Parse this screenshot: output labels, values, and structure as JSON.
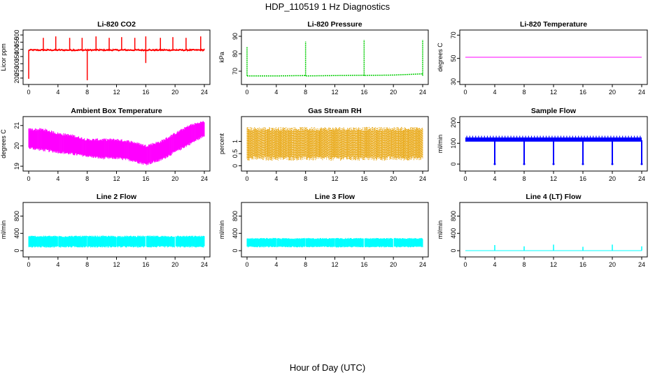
{
  "figure_title": "HDP_110519  1 Hz Diagnostics",
  "x_axis_label": "Hour of Day (UTC)",
  "chart_data": [
    {
      "type": "line",
      "title": "Li-820 CO2",
      "ylabel": "Licor ppm",
      "color": "#ff0000",
      "xlim": [
        0,
        24
      ],
      "ylim": [
        175,
        515
      ],
      "xticks": [
        0,
        4,
        8,
        12,
        16,
        20,
        24
      ],
      "yticks": [
        200,
        250,
        300,
        350,
        400,
        450,
        500
      ],
      "series": [
        {
          "name": "CO2",
          "baseline": 395,
          "noise": 4,
          "spikes": [
            [
              2,
              480
            ],
            [
              3.7,
              490
            ],
            [
              5.6,
              480
            ],
            [
              7.3,
              480
            ],
            [
              9.2,
              490
            ],
            [
              11,
              480
            ],
            [
              12.7,
              485
            ],
            [
              14.5,
              480
            ],
            [
              16,
              490
            ],
            [
              18,
              480
            ],
            [
              19.7,
              485
            ],
            [
              21.5,
              480
            ],
            [
              23.5,
              490
            ]
          ],
          "dips": [
            [
              0,
              195
            ],
            [
              8,
              185
            ],
            [
              16,
              305
            ]
          ],
          "x": [
            0,
            8,
            16,
            24
          ],
          "y": [
            395,
            395,
            395,
            395
          ]
        }
      ]
    },
    {
      "type": "line",
      "title": "Li-820 Pressure",
      "ylabel": "kPa",
      "color": "#00cc00",
      "xlim": [
        0,
        24
      ],
      "ylim": [
        64,
        92
      ],
      "xticks": [
        0,
        4,
        8,
        12,
        16,
        20,
        24
      ],
      "yticks": [
        70,
        80,
        90
      ],
      "series": [
        {
          "name": "Pressure",
          "x": [
            0,
            4,
            8,
            8.1,
            12,
            16,
            16.1,
            20,
            24
          ],
          "y": [
            67.3,
            67.3,
            67.5,
            67.3,
            67.5,
            67.7,
            67.6,
            67.8,
            68.5
          ],
          "spikes": [
            [
              0,
              84
            ],
            [
              8,
              87
            ],
            [
              16,
              88
            ],
            [
              24,
              88
            ]
          ]
        }
      ]
    },
    {
      "type": "line",
      "title": "Li-820 Temperature",
      "ylabel": "degrees C",
      "color": "#ff00ff",
      "xlim": [
        0,
        24
      ],
      "ylim": [
        30,
        72
      ],
      "xticks": [
        0,
        4,
        8,
        12,
        16,
        20,
        24
      ],
      "yticks": [
        30,
        50,
        70
      ],
      "series": [
        {
          "name": "Temperature",
          "x": [
            0,
            24
          ],
          "y": [
            51,
            51
          ]
        }
      ]
    },
    {
      "type": "area",
      "title": "Ambient Box Temperature",
      "ylabel": "degrees C",
      "color": "#ff00ff",
      "xlim": [
        0,
        24
      ],
      "ylim": [
        18.9,
        21.3
      ],
      "xticks": [
        0,
        4,
        8,
        12,
        16,
        20,
        24
      ],
      "yticks": [
        19.0,
        20.0,
        21.0
      ],
      "series": [
        {
          "name": "Box Temperature",
          "x": [
            0,
            2,
            4,
            6,
            8,
            10,
            12,
            14,
            16,
            18,
            20,
            22,
            24
          ],
          "upper": [
            20.8,
            20.8,
            20.6,
            20.5,
            20.3,
            20.3,
            20.3,
            20.2,
            20.0,
            20.2,
            20.6,
            21.0,
            21.2
          ],
          "lower": [
            19.9,
            19.8,
            19.7,
            19.6,
            19.5,
            19.4,
            19.4,
            19.3,
            19.1,
            19.3,
            19.7,
            20.1,
            20.5
          ]
        }
      ]
    },
    {
      "type": "area",
      "title": "Gas Stream RH",
      "ylabel": "percent",
      "color": "#e6a000",
      "xlim": [
        0,
        24
      ],
      "ylim": [
        -0.1,
        1.9
      ],
      "xticks": [
        0,
        4,
        8,
        12,
        16,
        20,
        24
      ],
      "yticks": [
        0.0,
        0.5,
        1.0
      ],
      "series": [
        {
          "name": "RH",
          "x": [
            0,
            24
          ],
          "upper": [
            1.5,
            1.5
          ],
          "lower": [
            0.3,
            0.3
          ]
        }
      ]
    },
    {
      "type": "line",
      "title": "Sample Flow",
      "ylabel": "ml/min",
      "color": "#0000ff",
      "xlim": [
        0,
        24
      ],
      "ylim": [
        -20,
        215
      ],
      "xticks": [
        0,
        4,
        8,
        12,
        16,
        20,
        24
      ],
      "yticks": [
        0,
        100,
        200
      ],
      "series": [
        {
          "name": "Sample Flow",
          "baseline": 115,
          "band": [
            108,
            128
          ],
          "dips": [
            [
              4,
              0
            ],
            [
              8,
              0
            ],
            [
              12,
              0
            ],
            [
              16,
              0
            ],
            [
              20,
              0
            ],
            [
              24,
              0
            ]
          ]
        }
      ]
    },
    {
      "type": "area",
      "title": "Line 2 Flow",
      "ylabel": "ml/min",
      "color": "#00ffff",
      "xlim": [
        0,
        24
      ],
      "ylim": [
        -80,
        1050
      ],
      "xticks": [
        0,
        4,
        8,
        12,
        16,
        20,
        24
      ],
      "yticks": [
        0,
        400,
        800
      ],
      "series": [
        {
          "name": "Line 2 Flow",
          "x": [
            0,
            24
          ],
          "upper": [
            330,
            330
          ],
          "lower": [
            90,
            90
          ],
          "gaps": [
            4,
            8,
            12,
            16,
            20
          ]
        }
      ]
    },
    {
      "type": "area",
      "title": "Line 3 Flow",
      "ylabel": "ml/min",
      "color": "#00ffff",
      "xlim": [
        0,
        24
      ],
      "ylim": [
        -80,
        1050
      ],
      "xticks": [
        0,
        4,
        8,
        12,
        16,
        20,
        24
      ],
      "yticks": [
        0,
        400,
        800
      ],
      "series": [
        {
          "name": "Line 3 Flow",
          "x": [
            0,
            24
          ],
          "upper": [
            280,
            280
          ],
          "lower": [
            90,
            90
          ],
          "gaps": [
            4,
            8,
            12,
            16,
            20
          ]
        }
      ]
    },
    {
      "type": "line",
      "title": "Line 4 (LT) Flow",
      "ylabel": "ml/min",
      "color": "#00ffff",
      "xlim": [
        0,
        24
      ],
      "ylim": [
        -80,
        1050
      ],
      "xticks": [
        0,
        4,
        8,
        12,
        16,
        20,
        24
      ],
      "yticks": [
        0,
        400,
        800
      ],
      "series": [
        {
          "name": "Line 4 Flow",
          "x": [
            0,
            24
          ],
          "y": [
            0,
            0
          ],
          "spikes": [
            [
              4,
              130
            ],
            [
              8,
              100
            ],
            [
              12,
              140
            ],
            [
              16,
              90
            ],
            [
              20,
              140
            ],
            [
              24,
              100
            ]
          ]
        }
      ]
    }
  ]
}
